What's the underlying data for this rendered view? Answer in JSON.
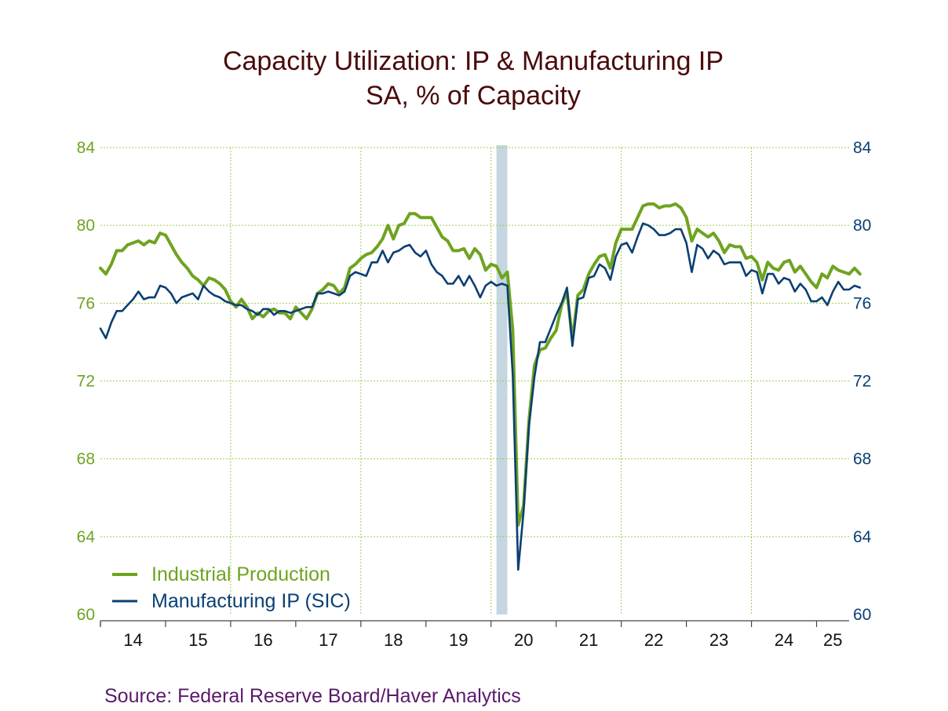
{
  "chart_data": {
    "type": "line",
    "title": "Capacity Utilization: IP & Manufacturing IP",
    "subtitle": "SA, % of Capacity",
    "source": "Source:  Federal Reserve Board/Haver Analytics",
    "x_range": [
      "2014-01",
      "2025-07"
    ],
    "ylim": [
      60,
      84
    ],
    "yticks": [
      "60",
      "64",
      "68",
      "72",
      "76",
      "80",
      "84"
    ],
    "xtick_labels": [
      "14",
      "15",
      "16",
      "17",
      "18",
      "19",
      "20",
      "21",
      "22",
      "23",
      "24",
      "25"
    ],
    "grid": true,
    "legend_position": "bottom-left",
    "recession_shading": [
      "2020-02",
      "2020-04"
    ],
    "colors": {
      "ip": "#6fa320",
      "mfg": "#0a3f73",
      "left_axis": "#6fa320",
      "right_axis": "#0a3f73",
      "title": "#4a0a0a",
      "source": "#5a1a6a",
      "grid": "#9ecf4a",
      "shading": "#c5d6e0"
    },
    "series": [
      {
        "name": "Industrial Production",
        "values": [
          77.8,
          77.5,
          78.0,
          78.7,
          78.7,
          79.0,
          79.1,
          79.2,
          79.0,
          79.2,
          79.1,
          79.6,
          79.5,
          79.0,
          78.5,
          78.1,
          77.8,
          77.4,
          77.2,
          76.9,
          77.3,
          77.2,
          77.0,
          76.7,
          76.1,
          75.8,
          76.2,
          75.8,
          75.2,
          75.5,
          75.3,
          75.6,
          75.7,
          75.5,
          75.5,
          75.2,
          75.8,
          75.5,
          75.2,
          75.7,
          76.5,
          76.7,
          77.0,
          76.9,
          76.5,
          76.8,
          77.8,
          78.0,
          78.3,
          78.5,
          78.6,
          78.9,
          79.3,
          80.0,
          79.3,
          80.0,
          80.1,
          80.6,
          80.6,
          80.4,
          80.4,
          80.4,
          79.9,
          79.4,
          79.2,
          78.7,
          78.7,
          78.8,
          78.3,
          78.8,
          78.5,
          77.7,
          78.0,
          77.9,
          77.3,
          77.6,
          74.6,
          64.6,
          65.6,
          70.0,
          72.8,
          73.6,
          73.7,
          74.2,
          74.6,
          75.9,
          76.6,
          74.1,
          76.4,
          76.7,
          77.5,
          78.0,
          78.4,
          78.5,
          77.8,
          79.1,
          79.8,
          79.8,
          79.8,
          80.4,
          81.0,
          81.1,
          81.1,
          80.9,
          81.0,
          81.0,
          81.1,
          80.9,
          80.4,
          79.2,
          79.8,
          79.6,
          79.4,
          79.6,
          79.2,
          78.6,
          79.0,
          78.9,
          78.9,
          78.3,
          78.4,
          78.1,
          77.2,
          78.1,
          77.8,
          77.7,
          78.1,
          78.2,
          77.6,
          77.9,
          77.5,
          77.1,
          76.8,
          77.5,
          77.3,
          77.9,
          77.7,
          77.6,
          77.5,
          77.8,
          77.5
        ]
      },
      {
        "name": "Manufacturing IP (SIC)",
        "values": [
          74.7,
          74.2,
          75.0,
          75.6,
          75.6,
          75.9,
          76.2,
          76.6,
          76.2,
          76.3,
          76.3,
          76.9,
          76.8,
          76.5,
          76.0,
          76.3,
          76.4,
          76.5,
          76.2,
          76.9,
          76.6,
          76.4,
          76.3,
          76.1,
          76.0,
          75.9,
          75.9,
          75.7,
          75.6,
          75.4,
          75.7,
          75.7,
          75.4,
          75.6,
          75.6,
          75.5,
          75.6,
          75.7,
          75.8,
          75.8,
          76.5,
          76.5,
          76.6,
          76.5,
          76.4,
          76.6,
          77.4,
          77.6,
          77.5,
          77.4,
          78.1,
          78.1,
          78.7,
          78.1,
          78.6,
          78.7,
          78.9,
          79.0,
          78.6,
          78.4,
          78.7,
          78.0,
          77.6,
          77.4,
          77.0,
          77.0,
          77.4,
          76.9,
          77.4,
          76.9,
          76.3,
          76.9,
          77.1,
          76.9,
          77.0,
          76.9,
          72.3,
          62.3,
          65.3,
          69.7,
          72.2,
          74.0,
          74.0,
          74.7,
          75.4,
          76.0,
          76.8,
          73.8,
          76.2,
          76.3,
          77.3,
          77.4,
          78.0,
          77.8,
          77.2,
          78.4,
          79.0,
          79.1,
          78.6,
          79.4,
          80.1,
          80.0,
          79.8,
          79.5,
          79.5,
          79.6,
          79.8,
          79.8,
          79.1,
          77.6,
          79.0,
          78.8,
          78.3,
          78.7,
          78.5,
          78.0,
          78.1,
          78.1,
          78.1,
          77.4,
          77.7,
          77.6,
          76.5,
          77.5,
          77.5,
          77.0,
          77.3,
          77.2,
          76.6,
          77.0,
          76.7,
          76.1,
          76.1,
          76.3,
          75.9,
          76.6,
          77.1,
          76.7,
          76.7,
          76.9,
          76.8
        ]
      }
    ]
  }
}
